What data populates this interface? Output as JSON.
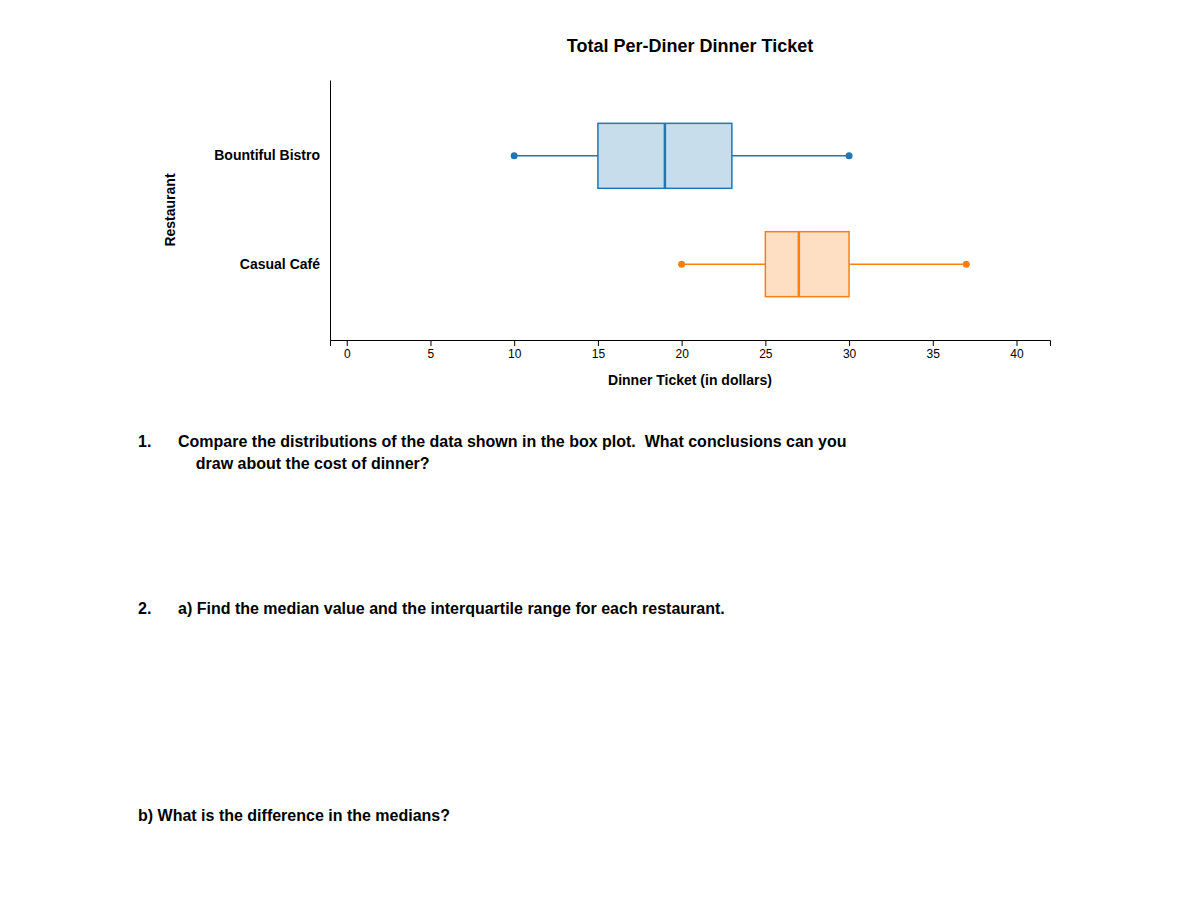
{
  "chart_data": {
    "type": "box",
    "orientation": "horizontal",
    "title": "Total Per-Diner Dinner Ticket",
    "x_label": "Dinner Ticket (in dollars)",
    "y_label": "Restaurant",
    "categories": [
      "Bountiful Bistro",
      "Casual Café"
    ],
    "min": [
      10,
      20
    ],
    "q1": [
      15,
      25
    ],
    "median": [
      19,
      27
    ],
    "q3": [
      23,
      30
    ],
    "max": [
      30,
      37
    ],
    "xlim": [
      -1,
      42
    ],
    "xticks": [
      0,
      5,
      10,
      15,
      20,
      25,
      30,
      35,
      40
    ],
    "annotations": [
      {
        "number": "1.",
        "text": "Compare the distributions of the data shown in the box plot.  What conclusions can you\n    draw about the cost of dinner?"
      },
      {
        "number": "2.",
        "text": "a) Find the median value and the interquartile range for each restaurant."
      },
      {
        "text": "b) What is the difference in the medians?"
      }
    ]
  }
}
